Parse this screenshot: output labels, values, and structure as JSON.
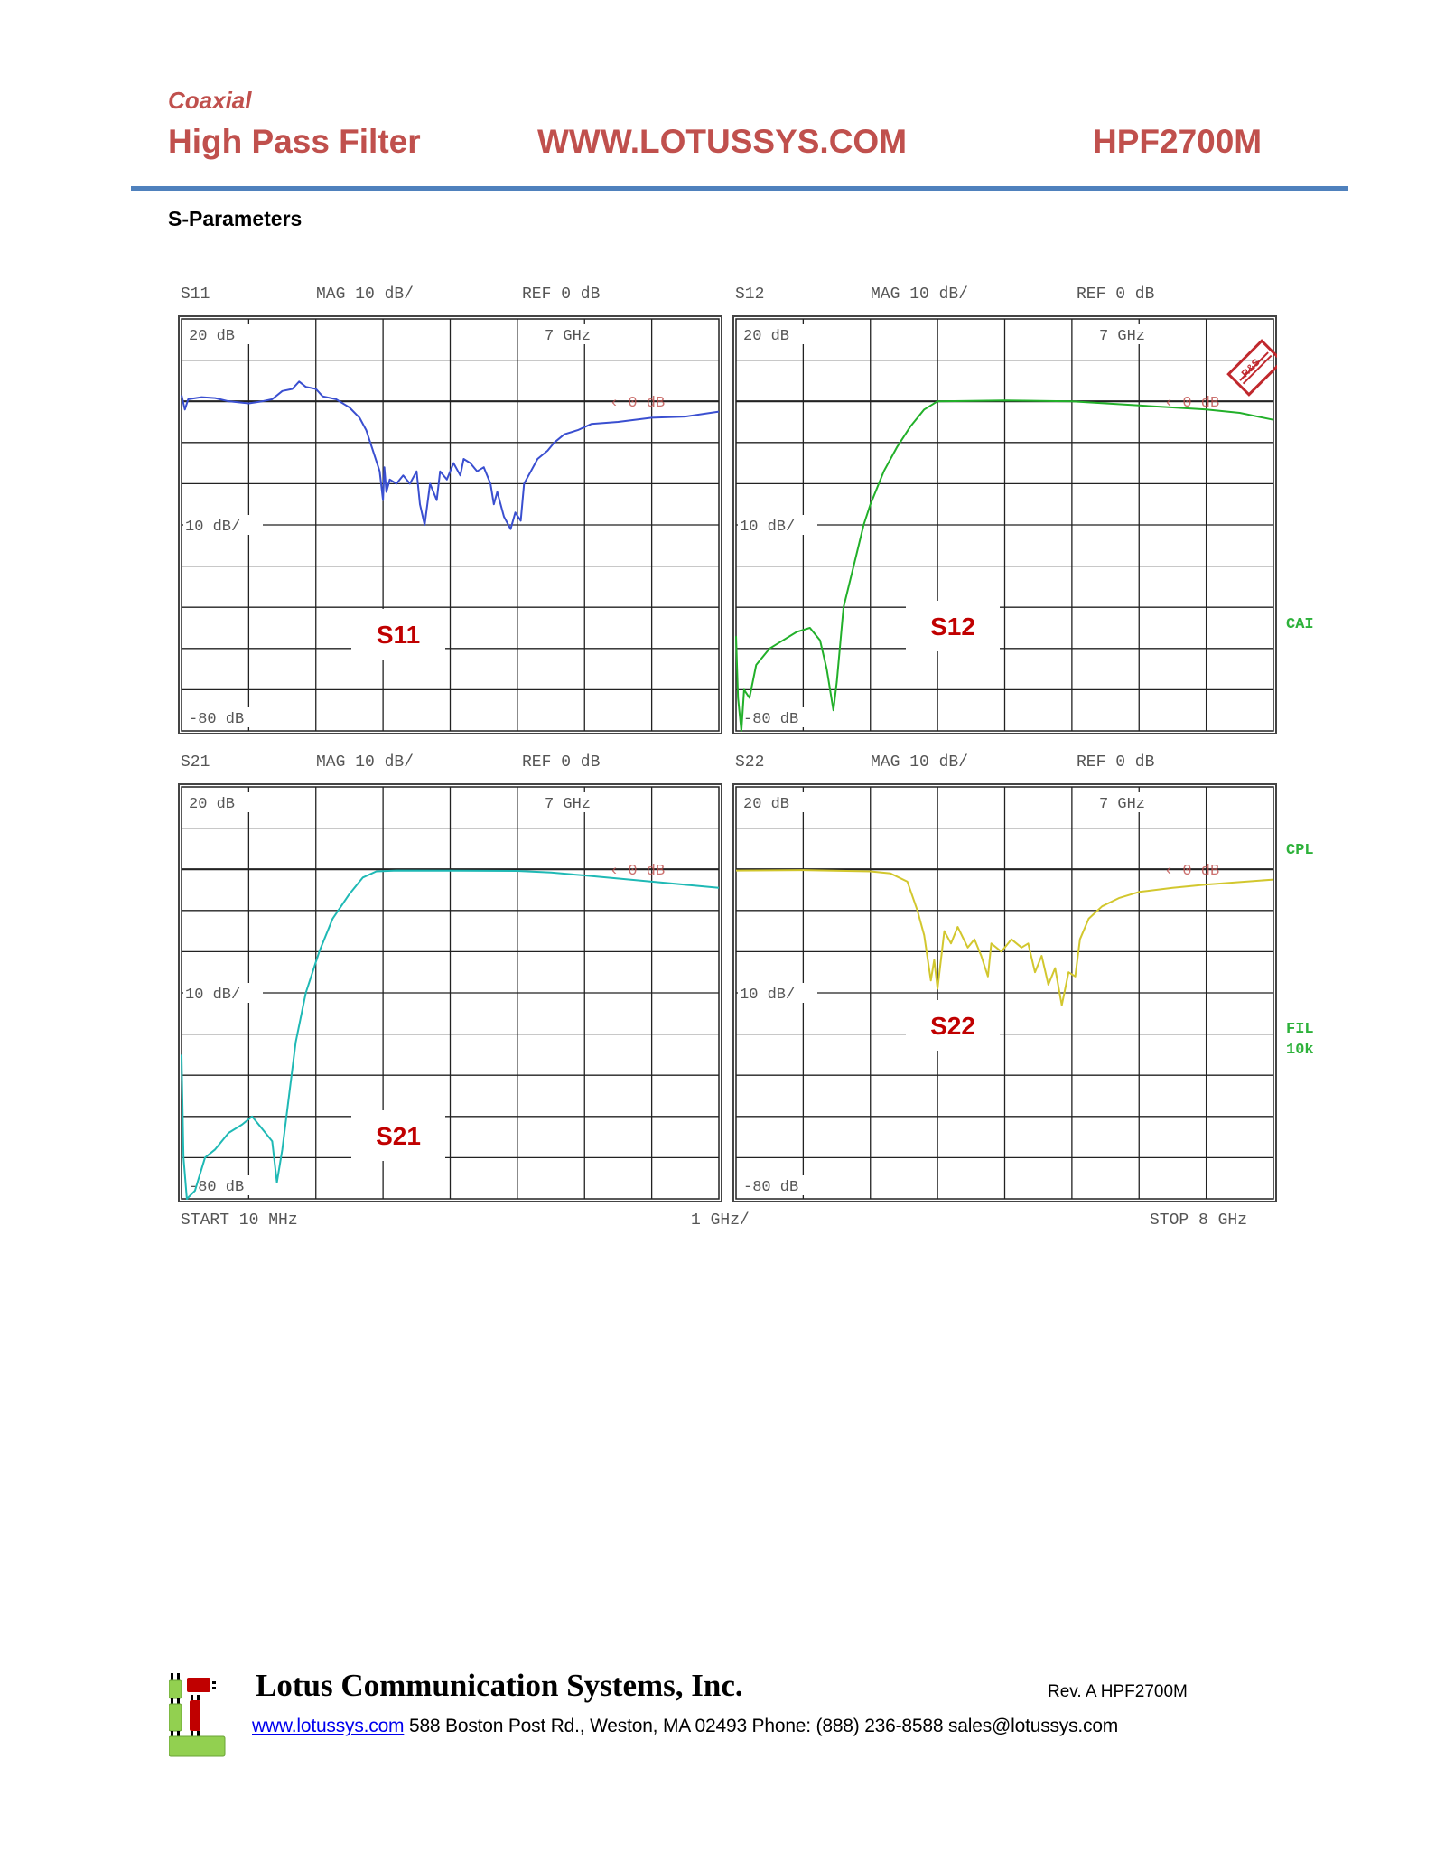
{
  "header": {
    "category": "Coaxial",
    "product_type": "High Pass Filter",
    "website": "WWW.LOTUSSYS.COM",
    "part_number": "HPF2700M"
  },
  "section_title": "S-Parameters",
  "analyzer": {
    "start_label": "START  10 MHz",
    "span_label": "1 GHz/",
    "stop_label": "STOP 8 GHz",
    "side_labels": {
      "cal": "CAI",
      "cpl": "CPL",
      "fil": "FIL",
      "fil_bw": "10k"
    },
    "logo_text": "R&S"
  },
  "colors": {
    "S11": "#3a4fd0",
    "S12": "#22b02a",
    "S21": "#1fb9b5",
    "S22": "#d2c72e",
    "label_red": "#c00000",
    "header_red": "#c0504d",
    "rule_blue": "#4f81bd"
  },
  "chart_data": [
    {
      "type": "line",
      "title": "S11",
      "scale_label": "MAG 10 dB/",
      "ref_label": "REF 0 dB",
      "top_label": "20 dB",
      "marker_label": "7 GHz",
      "div_label": "10 dB/",
      "bottom_label": "-80 dB",
      "ref_marker": "‹ 0 dB",
      "xlim": [
        0.01,
        8
      ],
      "ylim": [
        -80,
        20
      ],
      "grid": true,
      "series": [
        {
          "name": "S11",
          "points": [
            [
              0,
              1.5
            ],
            [
              0.05,
              -2
            ],
            [
              0.1,
              0.5
            ],
            [
              0.3,
              1
            ],
            [
              0.5,
              0.8
            ],
            [
              0.7,
              0
            ],
            [
              1.0,
              -0.5
            ],
            [
              1.2,
              0
            ],
            [
              1.35,
              0.5
            ],
            [
              1.5,
              2.5
            ],
            [
              1.65,
              3
            ],
            [
              1.75,
              4.8
            ],
            [
              1.85,
              3.5
            ],
            [
              2.0,
              3
            ],
            [
              2.1,
              1.2
            ],
            [
              2.3,
              0.5
            ],
            [
              2.5,
              -1.5
            ],
            [
              2.65,
              -4
            ],
            [
              2.75,
              -7
            ],
            [
              2.85,
              -12
            ],
            [
              2.95,
              -17
            ],
            [
              3.0,
              -24
            ],
            [
              3.02,
              -16
            ],
            [
              3.05,
              -22
            ],
            [
              3.1,
              -19
            ],
            [
              3.2,
              -20
            ],
            [
              3.3,
              -18
            ],
            [
              3.4,
              -20
            ],
            [
              3.5,
              -17
            ],
            [
              3.55,
              -25
            ],
            [
              3.62,
              -30
            ],
            [
              3.7,
              -20
            ],
            [
              3.8,
              -24
            ],
            [
              3.85,
              -17
            ],
            [
              3.95,
              -19
            ],
            [
              4.05,
              -15
            ],
            [
              4.15,
              -18
            ],
            [
              4.2,
              -14
            ],
            [
              4.3,
              -15
            ],
            [
              4.4,
              -17
            ],
            [
              4.5,
              -16
            ],
            [
              4.6,
              -20
            ],
            [
              4.65,
              -25
            ],
            [
              4.7,
              -22
            ],
            [
              4.8,
              -28
            ],
            [
              4.9,
              -31
            ],
            [
              4.97,
              -27
            ],
            [
              5.05,
              -29
            ],
            [
              5.1,
              -20
            ],
            [
              5.2,
              -17
            ],
            [
              5.3,
              -14
            ],
            [
              5.45,
              -12
            ],
            [
              5.55,
              -10
            ],
            [
              5.7,
              -8
            ],
            [
              5.9,
              -7
            ],
            [
              6.1,
              -5.5
            ],
            [
              6.5,
              -5
            ],
            [
              7.0,
              -4
            ],
            [
              7.5,
              -3.7
            ],
            [
              8.0,
              -2.5
            ]
          ]
        }
      ]
    },
    {
      "type": "line",
      "title": "S12",
      "scale_label": "MAG 10 dB/",
      "ref_label": "REF 0 dB",
      "top_label": "20 dB",
      "marker_label": "7 GHz",
      "div_label": "10 dB/",
      "bottom_label": "-80 dB",
      "ref_marker": "‹ 0 dB",
      "xlim": [
        0.01,
        8
      ],
      "ylim": [
        -80,
        20
      ],
      "grid": true,
      "series": [
        {
          "name": "S12",
          "points": [
            [
              0,
              -57
            ],
            [
              0.03,
              -72
            ],
            [
              0.08,
              -80
            ],
            [
              0.12,
              -70
            ],
            [
              0.2,
              -72
            ],
            [
              0.3,
              -64
            ],
            [
              0.5,
              -60
            ],
            [
              0.7,
              -58
            ],
            [
              0.9,
              -56
            ],
            [
              1.1,
              -55
            ],
            [
              1.25,
              -58
            ],
            [
              1.35,
              -65
            ],
            [
              1.45,
              -75
            ],
            [
              1.5,
              -68
            ],
            [
              1.6,
              -50
            ],
            [
              1.75,
              -40
            ],
            [
              1.9,
              -30
            ],
            [
              2.0,
              -25
            ],
            [
              2.2,
              -17
            ],
            [
              2.4,
              -11
            ],
            [
              2.6,
              -6
            ],
            [
              2.8,
              -2
            ],
            [
              3.0,
              0
            ],
            [
              4.0,
              0.2
            ],
            [
              5.0,
              0
            ],
            [
              5.5,
              -0.5
            ],
            [
              6.0,
              -1
            ],
            [
              6.5,
              -1.5
            ],
            [
              7.0,
              -2
            ],
            [
              7.5,
              -2.8
            ],
            [
              8.0,
              -4.5
            ]
          ]
        }
      ]
    },
    {
      "type": "line",
      "title": "S21",
      "scale_label": "MAG 10 dB/",
      "ref_label": "REF 0 dB",
      "top_label": "20 dB",
      "marker_label": "7 GHz",
      "div_label": "10 dB/",
      "bottom_label": "-80 dB",
      "ref_marker": "‹ 0 dB",
      "xlim": [
        0.01,
        8
      ],
      "ylim": [
        -80,
        20
      ],
      "grid": true,
      "series": [
        {
          "name": "S21",
          "points": [
            [
              0,
              -45
            ],
            [
              0.03,
              -70
            ],
            [
              0.08,
              -80
            ],
            [
              0.2,
              -78
            ],
            [
              0.35,
              -70
            ],
            [
              0.5,
              -68
            ],
            [
              0.7,
              -64
            ],
            [
              0.9,
              -62
            ],
            [
              1.05,
              -60
            ],
            [
              1.2,
              -63
            ],
            [
              1.35,
              -66
            ],
            [
              1.42,
              -76
            ],
            [
              1.5,
              -68
            ],
            [
              1.6,
              -55
            ],
            [
              1.7,
              -42
            ],
            [
              1.85,
              -30
            ],
            [
              2.05,
              -20
            ],
            [
              2.25,
              -12
            ],
            [
              2.5,
              -6
            ],
            [
              2.7,
              -2
            ],
            [
              2.9,
              -0.5
            ],
            [
              3.2,
              -0.3
            ],
            [
              5.0,
              -0.4
            ],
            [
              5.5,
              -0.8
            ],
            [
              6.0,
              -1.5
            ],
            [
              7.0,
              -3
            ],
            [
              8.0,
              -4.5
            ]
          ]
        }
      ]
    },
    {
      "type": "line",
      "title": "S22",
      "scale_label": "MAG 10 dB/",
      "ref_label": "REF 0 dB",
      "top_label": "20 dB",
      "marker_label": "7 GHz",
      "div_label": "10 dB/",
      "bottom_label": "-80 dB",
      "ref_marker": "‹ 0 dB",
      "xlim": [
        0.01,
        8
      ],
      "ylim": [
        -80,
        20
      ],
      "grid": true,
      "series": [
        {
          "name": "S22",
          "points": [
            [
              0,
              -0.3
            ],
            [
              1,
              -0.2
            ],
            [
              2.0,
              -0.5
            ],
            [
              2.3,
              -1
            ],
            [
              2.55,
              -3
            ],
            [
              2.7,
              -10
            ],
            [
              2.8,
              -16
            ],
            [
              2.9,
              -27
            ],
            [
              2.95,
              -22
            ],
            [
              3.0,
              -29
            ],
            [
              3.1,
              -15
            ],
            [
              3.2,
              -18
            ],
            [
              3.3,
              -14
            ],
            [
              3.45,
              -19
            ],
            [
              3.55,
              -17
            ],
            [
              3.65,
              -21
            ],
            [
              3.75,
              -26
            ],
            [
              3.8,
              -18
            ],
            [
              3.95,
              -20
            ],
            [
              4.1,
              -17
            ],
            [
              4.25,
              -19
            ],
            [
              4.35,
              -18
            ],
            [
              4.45,
              -25
            ],
            [
              4.55,
              -21
            ],
            [
              4.65,
              -28
            ],
            [
              4.75,
              -24
            ],
            [
              4.85,
              -33
            ],
            [
              4.95,
              -25
            ],
            [
              5.05,
              -26
            ],
            [
              5.12,
              -17
            ],
            [
              5.25,
              -12
            ],
            [
              5.45,
              -9
            ],
            [
              5.7,
              -7
            ],
            [
              6.0,
              -5.5
            ],
            [
              6.5,
              -4.5
            ],
            [
              7.0,
              -3.7
            ],
            [
              8.0,
              -2.5
            ]
          ]
        }
      ]
    }
  ],
  "footer": {
    "company": "Lotus Communication Systems, Inc.",
    "revision": "Rev. A   HPF2700M",
    "website_link": "www.lotussys.com",
    "address": " 588 Boston Post Rd., Weston, MA 02493 Phone: (888) 236-8588 sales@lotussys.com"
  }
}
